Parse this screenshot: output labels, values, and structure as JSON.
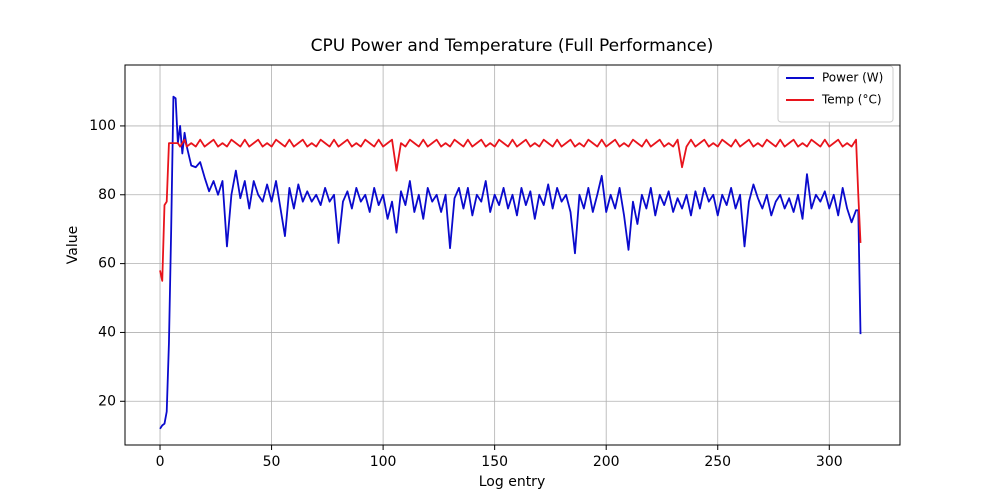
{
  "chart_data": {
    "type": "line",
    "title": "CPU Power and Temperature (Full Performance)",
    "xlabel": "Log entry",
    "ylabel": "Value",
    "x": [
      0,
      1,
      2,
      3,
      4,
      5,
      6,
      7,
      8,
      9,
      10,
      11,
      12,
      14,
      16,
      18,
      20,
      22,
      24,
      26,
      28,
      30,
      32,
      34,
      36,
      38,
      40,
      42,
      44,
      46,
      48,
      50,
      52,
      54,
      56,
      58,
      60,
      62,
      64,
      66,
      68,
      70,
      72,
      74,
      76,
      78,
      80,
      82,
      84,
      86,
      88,
      90,
      92,
      94,
      96,
      98,
      100,
      102,
      104,
      106,
      108,
      110,
      112,
      114,
      116,
      118,
      120,
      122,
      124,
      126,
      128,
      130,
      132,
      134,
      136,
      138,
      140,
      142,
      144,
      146,
      148,
      150,
      152,
      154,
      156,
      158,
      160,
      162,
      164,
      166,
      168,
      170,
      172,
      174,
      176,
      178,
      180,
      182,
      184,
      186,
      188,
      190,
      192,
      194,
      196,
      198,
      200,
      202,
      204,
      206,
      208,
      210,
      212,
      214,
      216,
      218,
      220,
      222,
      224,
      226,
      228,
      230,
      232,
      234,
      236,
      238,
      240,
      242,
      244,
      246,
      248,
      250,
      252,
      254,
      256,
      258,
      260,
      262,
      264,
      266,
      268,
      270,
      272,
      274,
      276,
      278,
      280,
      282,
      284,
      286,
      288,
      290,
      292,
      294,
      296,
      298,
      300,
      302,
      304,
      306,
      308,
      310,
      312,
      313,
      314
    ],
    "series": [
      {
        "name": "Power (W)",
        "color": "#0a0acd",
        "values": [
          12,
          13,
          13.5,
          17,
          37,
          70,
          108.5,
          108,
          95,
          100,
          92,
          98,
          94,
          88.5,
          88,
          89.5,
          85,
          81,
          84,
          80,
          84,
          65,
          80,
          87,
          79,
          84,
          76,
          84,
          80,
          78,
          83,
          78,
          84,
          76,
          68,
          82,
          76,
          83,
          78,
          81,
          78,
          80,
          77,
          82,
          78,
          80,
          66,
          78,
          81,
          76,
          82,
          78,
          80,
          75,
          82,
          77,
          80,
          73,
          78,
          69,
          81,
          77,
          84,
          75,
          80,
          73,
          82,
          78,
          80,
          75,
          80,
          64.5,
          79,
          82,
          76,
          82,
          74,
          80,
          78,
          84,
          75,
          80,
          77,
          82,
          76,
          80,
          74,
          82,
          77,
          81,
          73,
          80,
          77,
          83,
          76,
          82,
          78,
          80,
          75,
          63,
          80,
          76,
          82,
          75,
          80,
          85.5,
          75,
          80,
          76,
          82,
          74,
          64,
          78,
          71.5,
          80,
          76,
          82,
          74,
          80,
          77,
          81,
          75,
          79,
          76,
          80,
          74,
          81,
          76,
          82,
          78,
          80,
          74,
          80,
          77,
          82,
          76,
          80,
          65,
          78,
          83,
          79,
          76,
          80,
          74,
          78,
          80,
          76,
          79,
          75,
          80,
          73,
          86,
          76,
          80,
          78,
          81,
          76,
          80,
          74,
          82,
          76,
          72,
          75.5,
          75.5,
          39.5
        ]
      },
      {
        "name": "Temp (°C)",
        "color": "#e8141c",
        "values": [
          58,
          55,
          77,
          78,
          95,
          95,
          95,
          95,
          95,
          94,
          95,
          96,
          94,
          95,
          94,
          96,
          94,
          95,
          96,
          94,
          95,
          94,
          96,
          95,
          94,
          96,
          94,
          95,
          96,
          94,
          95,
          94,
          96,
          95,
          94,
          96,
          94,
          95,
          96,
          94,
          95,
          94,
          96,
          95,
          94,
          96,
          94,
          95,
          96,
          94,
          95,
          94,
          96,
          95,
          94,
          96,
          94,
          95,
          96,
          87,
          95,
          94,
          96,
          95,
          94,
          96,
          94,
          95,
          96,
          94,
          95,
          94,
          96,
          95,
          94,
          96,
          94,
          95,
          96,
          94,
          95,
          94,
          96,
          95,
          94,
          96,
          94,
          95,
          96,
          94,
          95,
          94,
          96,
          95,
          94,
          96,
          94,
          95,
          96,
          94,
          95,
          94,
          96,
          95,
          94,
          96,
          94,
          95,
          96,
          94,
          95,
          94,
          96,
          95,
          94,
          96,
          94,
          95,
          96,
          94,
          95,
          94,
          96,
          88,
          94,
          96,
          94,
          95,
          96,
          94,
          95,
          94,
          96,
          95,
          94,
          96,
          94,
          95,
          96,
          94,
          95,
          94,
          96,
          95,
          94,
          96,
          94,
          95,
          96,
          94,
          95,
          94,
          96,
          95,
          94,
          96,
          94,
          95,
          96,
          94,
          95,
          94,
          96,
          80,
          66
        ]
      }
    ],
    "xlim": [
      -15.7,
      331.7
    ],
    "xticks": [
      0,
      50,
      100,
      150,
      200,
      250,
      300
    ],
    "ylim": [
      7.3,
      117.7
    ],
    "yticks": [
      20,
      40,
      60,
      80,
      100
    ],
    "grid": true,
    "legend": "upper right"
  }
}
